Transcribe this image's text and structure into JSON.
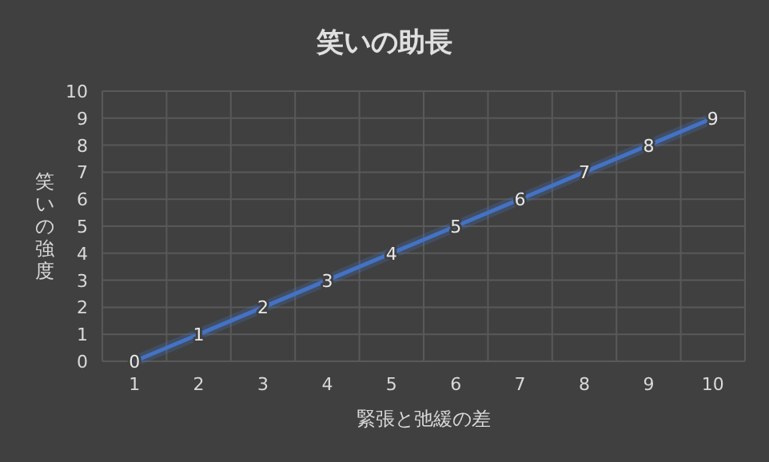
{
  "chart_data": {
    "type": "line",
    "title": "笑いの助長",
    "xlabel": "緊張と弛緩の差",
    "ylabel": "笑いの強度",
    "categories": [
      "1",
      "2",
      "3",
      "4",
      "5",
      "6",
      "7",
      "8",
      "9",
      "10"
    ],
    "series": [
      {
        "color": "#4472c4",
        "values": [
          0,
          1,
          2,
          3,
          4,
          5,
          6,
          7,
          8,
          9
        ]
      }
    ],
    "ylim": [
      0,
      10
    ],
    "yticks": [
      0,
      1,
      2,
      3,
      4,
      5,
      6,
      7,
      8,
      9,
      10
    ],
    "grid": true,
    "data_labels": true,
    "marker": "none",
    "line_style": "solid"
  }
}
